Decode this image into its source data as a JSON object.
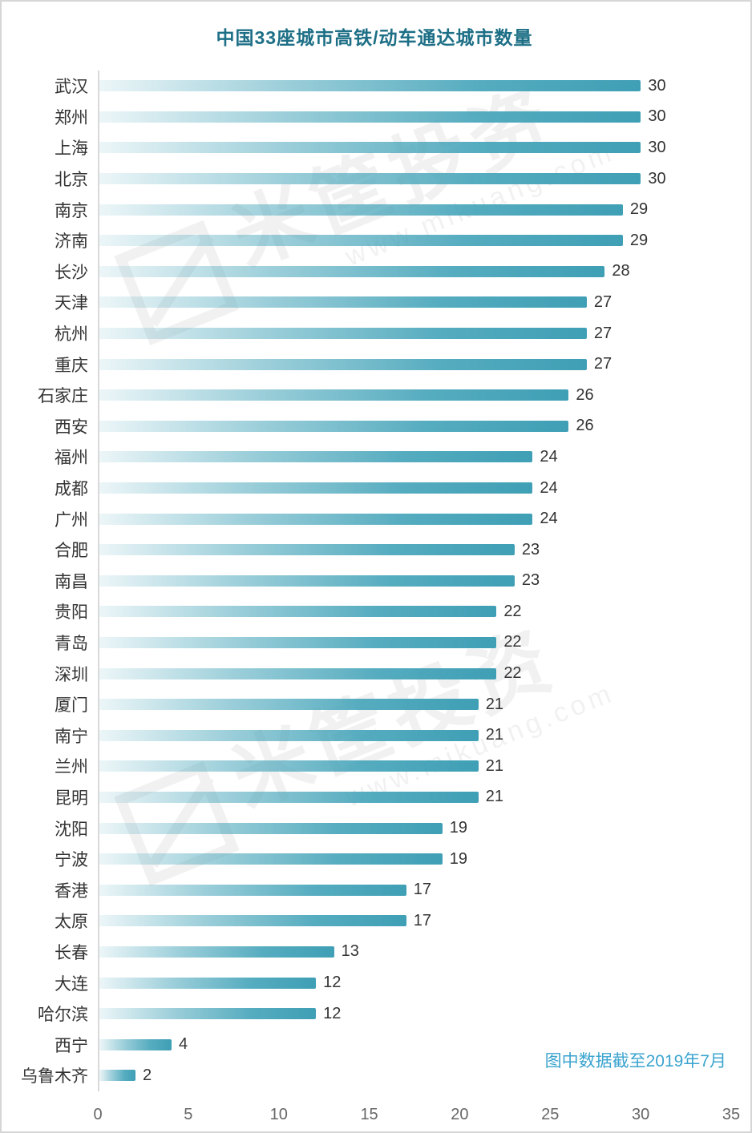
{
  "title": "中国33座城市高铁/动车通达城市数量",
  "footnote": "图中数据截至2019年7月",
  "watermark": {
    "brand": "米筐投资",
    "url": "www.mikuang.com"
  },
  "colors": {
    "bar": "#3F9FB5",
    "title": "#1D6F86",
    "footnote": "#3BA4CF",
    "category_label": "#333333",
    "value_label": "#333333",
    "tick_label": "#666666",
    "axis_line": "#D9D9D9"
  },
  "chart_data": {
    "type": "bar",
    "orientation": "horizontal",
    "title": "中国33座城市高铁/动车通达城市数量",
    "xlabel": "",
    "ylabel": "",
    "xlim": [
      0,
      35
    ],
    "xticks": [
      0,
      5,
      10,
      15,
      20,
      25,
      30,
      35
    ],
    "grid": false,
    "bar_labels": true,
    "categories": [
      "武汉",
      "郑州",
      "上海",
      "北京",
      "南京",
      "济南",
      "长沙",
      "天津",
      "杭州",
      "重庆",
      "石家庄",
      "西安",
      "福州",
      "成都",
      "广州",
      "合肥",
      "南昌",
      "贵阳",
      "青岛",
      "深圳",
      "厦门",
      "南宁",
      "兰州",
      "昆明",
      "沈阳",
      "宁波",
      "香港",
      "太原",
      "长春",
      "大连",
      "哈尔滨",
      "西宁",
      "乌鲁木齐"
    ],
    "values": [
      30,
      30,
      30,
      30,
      29,
      29,
      28,
      27,
      27,
      27,
      26,
      26,
      24,
      24,
      24,
      23,
      23,
      22,
      22,
      22,
      21,
      21,
      21,
      21,
      19,
      19,
      17,
      17,
      13,
      12,
      12,
      4,
      2
    ]
  }
}
